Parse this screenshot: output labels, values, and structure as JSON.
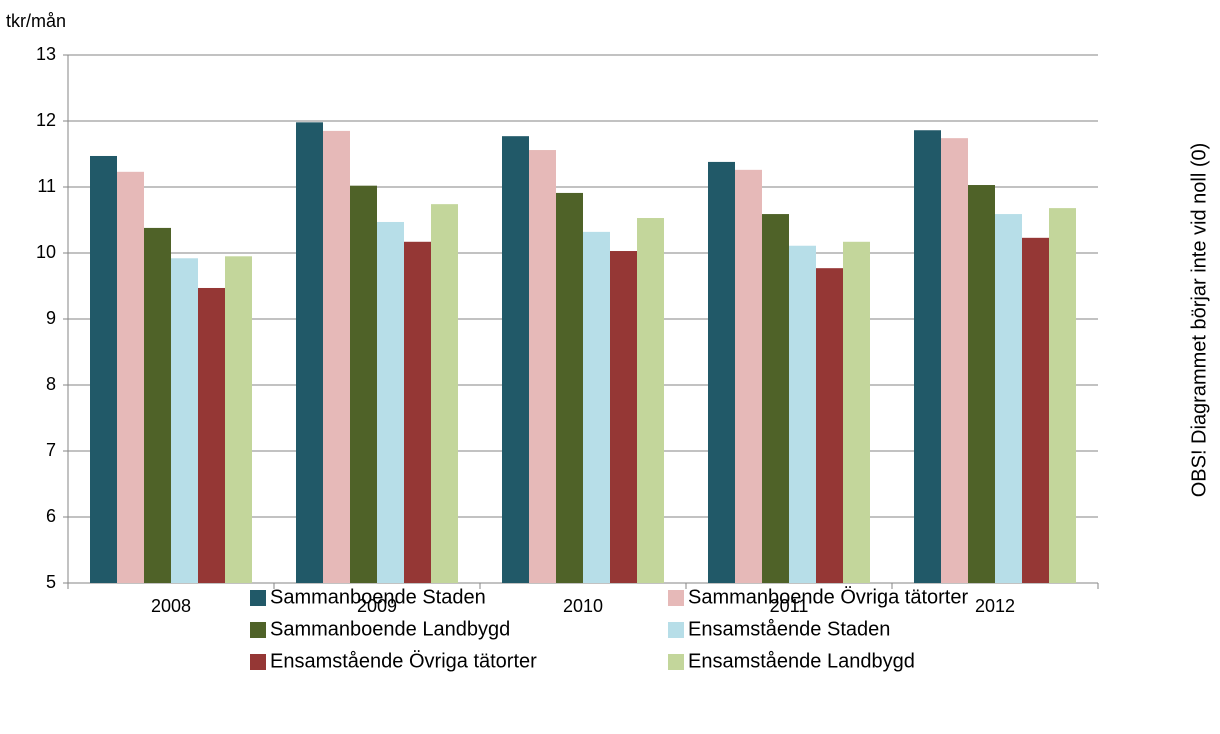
{
  "chart_data": {
    "type": "bar",
    "y_axis_label": "tkr/mån",
    "side_note": "OBS! Diagrammet börjar inte vid noll (0)",
    "categories": [
      "2008",
      "2009",
      "2010",
      "2011",
      "2012"
    ],
    "series": [
      {
        "name": "Sammanboende Staden",
        "color": "#215968",
        "values": [
          11.47,
          11.98,
          11.77,
          11.38,
          11.86
        ]
      },
      {
        "name": "Sammanboende Övriga tätorter",
        "color": "#e6b9b8",
        "values": [
          11.23,
          11.85,
          11.56,
          11.26,
          11.74
        ]
      },
      {
        "name": "Sammanboende Landbygd",
        "color": "#4f6228",
        "values": [
          10.38,
          11.02,
          10.91,
          10.59,
          11.03
        ]
      },
      {
        "name": "Ensamstående Staden",
        "color": "#b7dee8",
        "values": [
          9.92,
          10.47,
          10.32,
          10.11,
          10.59
        ]
      },
      {
        "name": "Ensamstående Övriga tätorter",
        "color": "#953735",
        "values": [
          9.47,
          10.17,
          10.03,
          9.77,
          10.23
        ]
      },
      {
        "name": "Ensamstående Landbygd",
        "color": "#c3d69b",
        "values": [
          9.95,
          10.74,
          10.53,
          10.17,
          10.68
        ]
      }
    ],
    "ylim": [
      5,
      13
    ],
    "yticks": [
      5,
      6,
      7,
      8,
      9,
      10,
      11,
      12,
      13
    ],
    "grid": true
  }
}
